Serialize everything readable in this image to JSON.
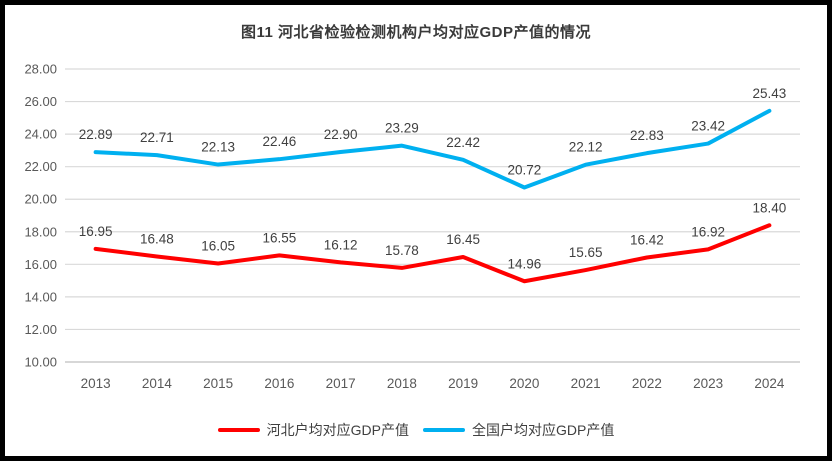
{
  "chart_data": {
    "type": "line",
    "title": "图11 河北省检验检测机构户均对应GDP产值的情况",
    "categories": [
      "2013",
      "2014",
      "2015",
      "2016",
      "2017",
      "2018",
      "2019",
      "2020",
      "2021",
      "2022",
      "2023",
      "2024"
    ],
    "series": [
      {
        "name": "河北户均对应GDP产值",
        "color": "#FF0000",
        "values": [
          16.95,
          16.48,
          16.05,
          16.55,
          16.12,
          15.78,
          16.45,
          14.96,
          15.65,
          16.42,
          16.92,
          18.4
        ]
      },
      {
        "name": "全国户均对应GDP产值",
        "color": "#00B0F0",
        "values": [
          22.89,
          22.71,
          22.13,
          22.46,
          22.9,
          23.29,
          22.42,
          20.72,
          22.12,
          22.83,
          23.42,
          25.43
        ]
      }
    ],
    "ylim": [
      10,
      28
    ],
    "ytick_step": 2,
    "value_decimals": 2,
    "grid": true,
    "legend_position": "bottom",
    "colors": {
      "gridline": "#D9D9D9",
      "axis_line": "#BFBFBF",
      "tick_label": "#595959",
      "data_label": "#404040",
      "title": "#3a3a3a",
      "frame_border": "#000000",
      "background": "#ffffff"
    }
  }
}
